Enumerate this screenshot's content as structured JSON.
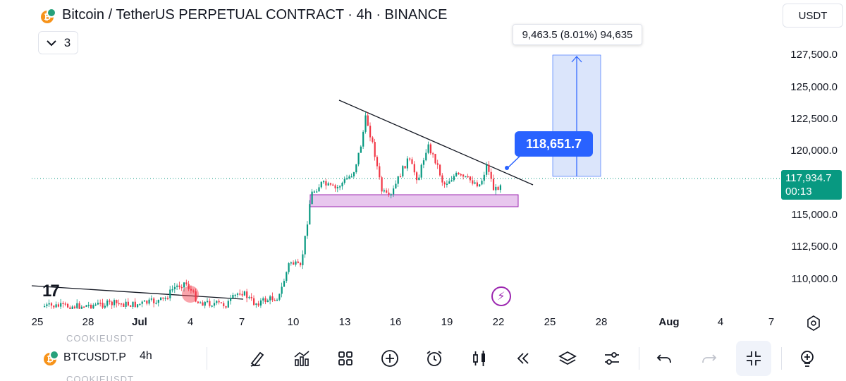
{
  "header": {
    "title": "Bitcoin / TetherUS PERPETUAL CONTRACT · 4h · BINANCE",
    "collapse_count": "3",
    "currency": "USDT"
  },
  "price_axis": {
    "ticks": [
      "127,500.0",
      "125,000.0",
      "122,500.0",
      "120,000.0",
      "115,000.0",
      "112,500.0",
      "110,000.0"
    ],
    "current_price": "117,934.7",
    "countdown": "00:13"
  },
  "time_axis": {
    "ticks": [
      "25",
      "28",
      "Jul",
      "4",
      "7",
      "10",
      "13",
      "16",
      "19",
      "22",
      "25",
      "28",
      "Aug",
      "4",
      "7"
    ]
  },
  "annotations": {
    "measure_label": "9,463.5 (8.01%) 94,635",
    "price_bubble": "118,651.7"
  },
  "colors": {
    "up": "#089981",
    "down": "#f23645",
    "accent": "#2962ff",
    "zone": "#e1bee7",
    "measure_fill": "#dbe5fb"
  },
  "toolbar": {
    "symbol": "BTCUSDT.P",
    "interval": "4h",
    "ghost_text": "COOKIEUSDT",
    "icons": [
      "draw-icon",
      "indicators-icon",
      "layouts-icon",
      "add-icon",
      "alert-icon",
      "chart-type-icon",
      "replay-icon",
      "layers-icon",
      "settings-sliders-icon",
      "undo-icon",
      "redo-icon",
      "collapse-icon",
      "add-alert-icon"
    ]
  }
}
